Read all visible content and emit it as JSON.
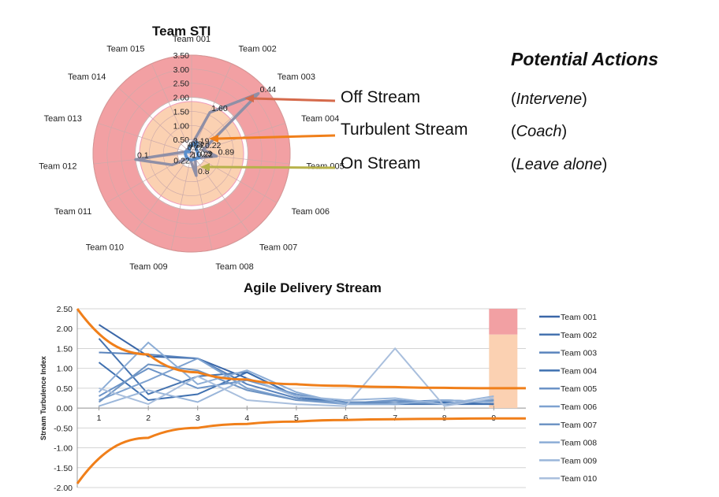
{
  "colors": {
    "red_zone": "#f2a0a3",
    "orange_zone": "#fbd1b2",
    "blue_series": "#5a8fcd",
    "grey_series": "#8f8fa6",
    "arrow_off": "#d56a4b",
    "arrow_turbulent": "#f07f1a",
    "arrow_on": "#b7b24a",
    "band_line": "#f07f1a"
  },
  "legend_panel": {
    "title": "Potential Actions",
    "rows": [
      {
        "stream": "Off Stream",
        "open": "(",
        "action": "Intervene",
        "close": ")"
      },
      {
        "stream": "Turbulent Stream",
        "open": "(",
        "action": "Coach",
        "close": ")"
      },
      {
        "stream": "On Stream",
        "open": "(",
        "action": "Leave alone",
        "close": ")"
      }
    ]
  },
  "chart_data": [
    {
      "type": "radar",
      "title": "Team STI",
      "categories": [
        "Team 001",
        "Team 002",
        "Team 003",
        "Team 004",
        "Team 005",
        "Team 006",
        "Team 007",
        "Team 008",
        "Team 009",
        "Team 010",
        "Team 011",
        "Team 012",
        "Team 013",
        "Team 014",
        "Team 015"
      ],
      "radial_ticks": [
        "3.50",
        "3.00",
        "2.50",
        "2.00",
        "1.50",
        "1.00",
        "0.50"
      ],
      "rlim": [
        0,
        3.5
      ],
      "zones": [
        {
          "name": "Off Stream",
          "from": 2.0,
          "to": 3.5
        },
        {
          "name": "Turbulent Stream",
          "from": 0.5,
          "to": 1.85
        }
      ],
      "series": [
        {
          "values": [
            0.3,
            1.6,
            3.19,
            0.44,
            0.89,
            0.3,
            0.22,
            0.8,
            0.22,
            0.22,
            0.8,
            2,
            0.22,
            0.22,
            0.2
          ]
        },
        {
          "values": [
            0.3,
            0.44,
            0.22,
            0.22,
            0.22,
            0.3,
            0.22,
            0.22,
            0.22,
            0.22,
            0.22,
            0.22,
            0.22,
            0.1,
            0.22
          ]
        }
      ],
      "data_labels": [
        "3.19",
        "1.60",
        "0.44",
        "0.22",
        "0.89",
        "0.3",
        "0.22",
        "0.8",
        "1",
        "2",
        "0.22",
        "0.1",
        "0.22",
        "0.22",
        "0.3"
      ]
    },
    {
      "type": "line",
      "title": "Agile Delivery Stream",
      "ylabel": "Stream Turbulence Index",
      "xlabel": "",
      "x": [
        1,
        2,
        3,
        4,
        5,
        6,
        7,
        8,
        9
      ],
      "x_ticks": [
        "1",
        "2",
        "3",
        "4",
        "5",
        "6",
        "7",
        "8",
        "9"
      ],
      "y_ticks": [
        "2.50",
        "2.00",
        "1.50",
        "1.00",
        "0.50",
        "0.00",
        "-0.50",
        "-1.00",
        "-1.50",
        "-2.00"
      ],
      "ylim": [
        -2.0,
        2.5
      ],
      "grid": true,
      "legend_position": "right",
      "series": [
        {
          "name": "Team 001",
          "values": [
            2.1,
            1.3,
            1.25,
            0.75,
            0.3,
            0.1,
            0.1,
            0.1,
            0.1
          ]
        },
        {
          "name": "Team 002",
          "values": [
            1.75,
            0.35,
            0.8,
            0.9,
            0.3,
            0.15,
            0.1,
            0.12,
            0.1
          ]
        },
        {
          "name": "Team 003",
          "values": [
            1.4,
            1.35,
            1.25,
            0.6,
            0.25,
            0.1,
            0.15,
            0.2,
            0.15
          ]
        },
        {
          "name": "Team 004",
          "values": [
            1.15,
            0.2,
            0.35,
            0.9,
            0.3,
            0.12,
            0.1,
            0.15,
            0.1
          ]
        },
        {
          "name": "Team 005",
          "values": [
            0.3,
            1.0,
            0.5,
            0.7,
            0.35,
            0.12,
            0.2,
            0.1,
            0.2
          ]
        },
        {
          "name": "Team 006",
          "values": [
            0.2,
            0.7,
            1.25,
            0.5,
            0.2,
            0.1,
            0.1,
            0.2,
            0.15
          ]
        },
        {
          "name": "Team 007",
          "values": [
            0.15,
            1.1,
            0.95,
            0.45,
            0.2,
            0.15,
            0.15,
            0.1,
            0.2
          ]
        },
        {
          "name": "Team 008",
          "values": [
            0.4,
            1.65,
            0.6,
            0.95,
            0.4,
            0.1,
            0.1,
            0.2,
            0.15
          ]
        },
        {
          "name": "Team 009",
          "values": [
            0.05,
            0.45,
            0.15,
            0.75,
            0.3,
            0.2,
            0.25,
            0.1,
            0.3
          ]
        },
        {
          "name": "Team 010",
          "values": [
            0.5,
            0.1,
            0.8,
            0.2,
            0.1,
            0.05,
            1.5,
            0.05,
            0.25
          ]
        }
      ],
      "band": {
        "upper": [
          2.5,
          1.35,
          0.9,
          0.72,
          0.6,
          0.56,
          0.53,
          0.51,
          0.5
        ],
        "lower": [
          -1.9,
          -0.75,
          -0.5,
          -0.4,
          -0.34,
          -0.3,
          -0.28,
          -0.27,
          -0.26
        ],
        "x_start": 0.56,
        "x_end": 9.65
      },
      "zones": [
        {
          "name": "Off Stream",
          "x_from": 9.0,
          "x_to": 9.5,
          "y_from": 1.85,
          "y_to": 2.5
        },
        {
          "name": "Turbulent Stream",
          "x_from": 9.0,
          "x_to": 9.5,
          "y_from": 0.0,
          "y_to": 1.85
        }
      ]
    }
  ]
}
